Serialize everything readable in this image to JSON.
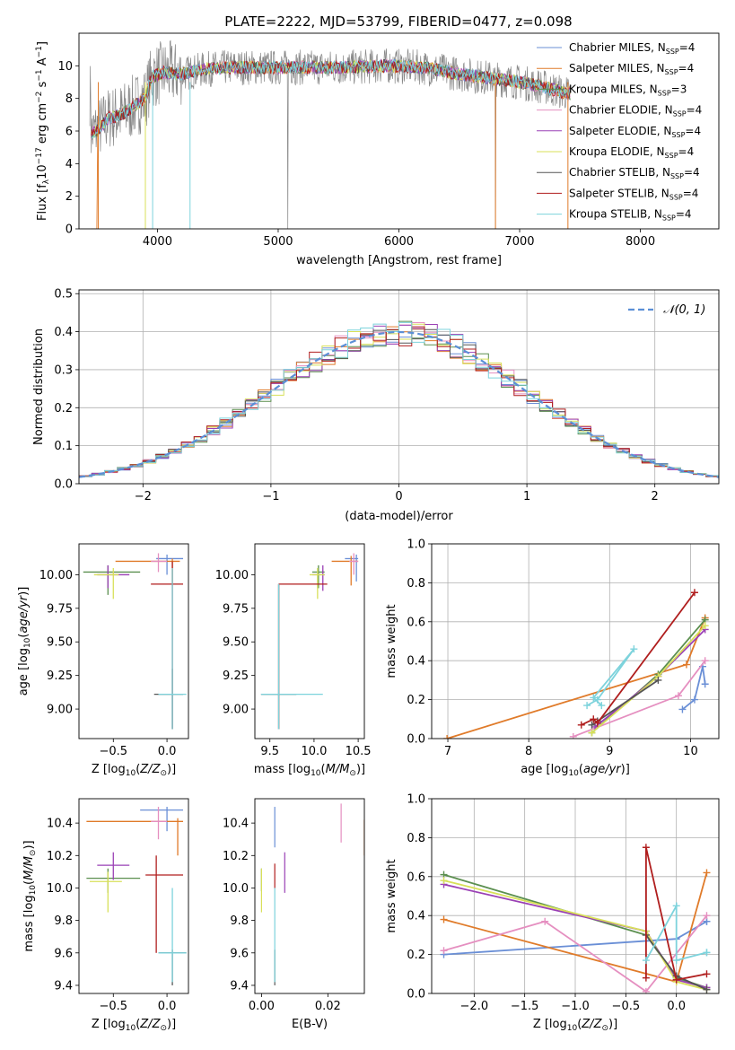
{
  "title": "PLATE=2222, MJD=53799, FIBERID=0477, z=0.098",
  "chart_data": [
    {
      "id": "spectrum",
      "type": "line",
      "xlabel": "wavelength [Angstrom, rest frame]",
      "ylabel": "Flux [f_λ 10^-17 erg cm^-2 s^-1 A^-1]",
      "xlim": [
        3350,
        8650
      ],
      "ylim": [
        0,
        12
      ],
      "xticks": [
        4000,
        5000,
        6000,
        7000,
        8000
      ],
      "yticks": [
        0,
        2,
        4,
        6,
        8,
        10
      ],
      "legend_position": "right",
      "legend": [
        {
          "label": "Chabrier MILES, N_SSP=4",
          "color": "#6a8fd6"
        },
        {
          "label": "Salpeter MILES, N_SSP=4",
          "color": "#e07b2a"
        },
        {
          "label": "Kroupa MILES, N_SSP=3",
          "color": "#5b8f4f"
        },
        {
          "label": "Chabrier ELODIE, N_SSP=4",
          "color": "#e58fc0"
        },
        {
          "label": "Salpeter ELODIE, N_SSP=4",
          "color": "#9a40b5"
        },
        {
          "label": "Kroupa ELODIE, N_SSP=4",
          "color": "#d8e05a"
        },
        {
          "label": "Chabrier STELIB, N_SSP=4",
          "color": "#555555"
        },
        {
          "label": "Salpeter STELIB, N_SSP=4",
          "color": "#b01e1e"
        },
        {
          "label": "Kroupa STELIB, N_SSP=4",
          "color": "#7dd3dc"
        }
      ],
      "data_color": "#888888",
      "model_profile": {
        "x": [
          3450,
          3520,
          3600,
          3700,
          3800,
          3900,
          3950,
          4050,
          4200,
          4400,
          4600,
          4800,
          5000,
          5300,
          5600,
          5900,
          6200,
          6500,
          6800,
          7000,
          7200,
          7400
        ],
        "y": [
          5.8,
          6.2,
          6.8,
          7.0,
          7.5,
          8.0,
          9.3,
          9.6,
          9.5,
          9.8,
          9.9,
          9.9,
          9.9,
          9.9,
          9.9,
          10.0,
          9.9,
          9.5,
          9.2,
          9.0,
          8.7,
          8.3
        ]
      }
    },
    {
      "id": "residuals",
      "type": "line",
      "xlabel": "(data-model)/error",
      "ylabel": "Normed distribution",
      "xlim": [
        -2.5,
        2.5
      ],
      "ylim": [
        0,
        0.51
      ],
      "xticks": [
        -2,
        -1,
        0,
        1,
        2
      ],
      "yticks": [
        0.0,
        0.1,
        0.2,
        0.3,
        0.4,
        0.5
      ],
      "grid": true,
      "legend_position": "top-right",
      "gaussian": {
        "label": "𝒩(0, 1)",
        "color": "#5b8fd6",
        "mean": 0,
        "sigma": 1
      }
    },
    {
      "id": "age-vs-Z",
      "type": "scatter",
      "xlabel": "Z [log10(Z/Z☉)]",
      "ylabel": "age [log10(age/yr)]",
      "xlim": [
        -0.82,
        0.2
      ],
      "ylim": [
        8.78,
        10.23
      ],
      "xticks": [
        -0.5,
        0.0
      ],
      "yticks": [
        9.0,
        9.25,
        9.5,
        9.75,
        10.0
      ],
      "points": [
        {
          "c": "#6a8fd6",
          "x": 0.0,
          "y": 10.12,
          "xe": [
            -0.1,
            0.15
          ],
          "ye": [
            10.0,
            10.15
          ]
        },
        {
          "c": "#e07b2a",
          "x": 0.05,
          "y": 10.1,
          "xe": [
            -0.48,
            0.12
          ],
          "ye": [
            9.92,
            10.12
          ]
        },
        {
          "c": "#5b8f4f",
          "x": -0.55,
          "y": 10.02,
          "xe": [
            -0.78,
            -0.25
          ],
          "ye": [
            9.85,
            10.07
          ]
        },
        {
          "c": "#e58fc0",
          "x": -0.08,
          "y": 10.1,
          "xe": [
            -0.15,
            0.0
          ],
          "ye": [
            10.02,
            10.16
          ]
        },
        {
          "c": "#9a40b5",
          "x": -0.55,
          "y": 10.0,
          "xe": [
            -0.65,
            -0.35
          ],
          "ye": [
            9.9,
            10.07
          ]
        },
        {
          "c": "#d8e05a",
          "x": -0.5,
          "y": 10.0,
          "xe": [
            -0.68,
            -0.45
          ],
          "ye": [
            9.82,
            10.05
          ]
        },
        {
          "c": "#555555",
          "x": 0.05,
          "y": 9.11,
          "xe": [
            -0.12,
            0.15
          ],
          "ye": [
            8.85,
            9.3
          ]
        },
        {
          "c": "#b01e1e",
          "x": 0.05,
          "y": 9.93,
          "xe": [
            -0.15,
            0.15
          ],
          "ye": [
            8.85,
            10.1
          ]
        },
        {
          "c": "#7dd3dc",
          "x": 0.05,
          "y": 9.11,
          "xe": [
            -0.08,
            0.18
          ],
          "ye": [
            8.85,
            10.05
          ]
        }
      ]
    },
    {
      "id": "age-vs-mass",
      "type": "scatter",
      "xlabel": "mass [log10(M/M☉)]",
      "ylabel": "",
      "xlim": [
        9.33,
        10.57
      ],
      "ylim": [
        8.78,
        10.23
      ],
      "xticks": [
        9.5,
        10.0,
        10.5
      ],
      "yticks": [
        9.0,
        9.25,
        9.5,
        9.75,
        10.0
      ],
      "points": [
        {
          "c": "#6a8fd6",
          "x": 10.48,
          "y": 10.12,
          "xe": [
            10.35,
            10.5
          ],
          "ye": [
            9.95,
            10.15
          ]
        },
        {
          "c": "#e07b2a",
          "x": 10.42,
          "y": 10.1,
          "xe": [
            10.2,
            10.5
          ],
          "ye": [
            9.92,
            10.14
          ]
        },
        {
          "c": "#5b8f4f",
          "x": 10.05,
          "y": 10.02,
          "xe": [
            9.98,
            10.12
          ],
          "ye": [
            9.9,
            10.07
          ]
        },
        {
          "c": "#e58fc0",
          "x": 10.45,
          "y": 10.1,
          "xe": [
            10.4,
            10.5
          ],
          "ye": [
            10.0,
            10.16
          ]
        },
        {
          "c": "#9a40b5",
          "x": 10.1,
          "y": 10.0,
          "xe": [
            9.98,
            10.12
          ],
          "ye": [
            9.88,
            10.07
          ]
        },
        {
          "c": "#d8e05a",
          "x": 10.04,
          "y": 10.0,
          "xe": [
            9.95,
            10.12
          ],
          "ye": [
            9.82,
            10.05
          ]
        },
        {
          "c": "#555555",
          "x": 9.6,
          "y": 9.11,
          "xe": [
            9.4,
            9.8
          ],
          "ye": [
            8.85,
            9.93
          ]
        },
        {
          "c": "#b01e1e",
          "x": 9.6,
          "y": 9.93,
          "xe": [
            9.6,
            10.15
          ],
          "ye": [
            8.85,
            9.93
          ]
        },
        {
          "c": "#7dd3dc",
          "x": 9.6,
          "y": 9.11,
          "xe": [
            9.4,
            10.1
          ],
          "ye": [
            8.85,
            9.93
          ]
        }
      ]
    },
    {
      "id": "weight-vs-age",
      "type": "line",
      "xlabel": "age [log10(age/yr)]",
      "ylabel": "mass weight",
      "xlim": [
        6.8,
        10.35
      ],
      "ylim": [
        0,
        1.0
      ],
      "xticks": [
        7,
        8,
        9,
        10
      ],
      "yticks": [
        0.0,
        0.2,
        0.4,
        0.6,
        0.8,
        1.0
      ],
      "grid": true,
      "series": [
        {
          "c": "#6a8fd6",
          "x": [
            9.9,
            10.05,
            10.15,
            10.18
          ],
          "y": [
            0.15,
            0.2,
            0.37,
            0.28
          ]
        },
        {
          "c": "#e07b2a",
          "x": [
            6.99,
            9.95,
            10.18
          ],
          "y": [
            0.0,
            0.38,
            0.62
          ]
        },
        {
          "c": "#5b8f4f",
          "x": [
            8.78,
            9.6,
            10.18
          ],
          "y": [
            0.03,
            0.33,
            0.61
          ]
        },
        {
          "c": "#e58fc0",
          "x": [
            8.55,
            9.85,
            10.18
          ],
          "y": [
            0.01,
            0.22,
            0.4
          ]
        },
        {
          "c": "#9a40b5",
          "x": [
            8.82,
            9.6,
            10.18
          ],
          "y": [
            0.06,
            0.32,
            0.56
          ]
        },
        {
          "c": "#d8e05a",
          "x": [
            8.78,
            9.6,
            10.18
          ],
          "y": [
            0.03,
            0.32,
            0.58
          ]
        },
        {
          "c": "#555555",
          "x": [
            8.78,
            8.85,
            9.6
          ],
          "y": [
            0.07,
            0.09,
            0.3
          ]
        },
        {
          "c": "#b01e1e",
          "x": [
            8.65,
            8.8,
            8.85,
            10.05
          ],
          "y": [
            0.07,
            0.1,
            0.08,
            0.75
          ]
        },
        {
          "c": "#7dd3dc",
          "x": [
            8.72,
            8.85,
            9.3,
            8.8,
            8.9
          ],
          "y": [
            0.17,
            0.2,
            0.46,
            0.21,
            0.17
          ]
        }
      ]
    },
    {
      "id": "mass-vs-Z",
      "type": "scatter",
      "xlabel": "Z [log10(Z/Z☉)]",
      "ylabel": "mass [log10(M/M☉)]",
      "xlim": [
        -0.82,
        0.2
      ],
      "ylim": [
        9.35,
        10.55
      ],
      "xticks": [
        -0.5,
        0.0
      ],
      "yticks": [
        9.4,
        9.6,
        9.8,
        10.0,
        10.2,
        10.4
      ],
      "points": [
        {
          "c": "#6a8fd6",
          "x": 0.0,
          "y": 10.48,
          "xe": [
            -0.25,
            0.15
          ],
          "ye": [
            10.35,
            10.5
          ]
        },
        {
          "c": "#e07b2a",
          "x": 0.1,
          "y": 10.41,
          "xe": [
            -0.75,
            0.15
          ],
          "ye": [
            10.2,
            10.43
          ]
        },
        {
          "c": "#5b8f4f",
          "x": -0.55,
          "y": 10.06,
          "xe": [
            -0.75,
            -0.25
          ],
          "ye": [
            9.97,
            10.12
          ]
        },
        {
          "c": "#e58fc0",
          "x": -0.08,
          "y": 10.41,
          "xe": [
            -0.15,
            0.0
          ],
          "ye": [
            10.3,
            10.5
          ]
        },
        {
          "c": "#9a40b5",
          "x": -0.5,
          "y": 10.14,
          "xe": [
            -0.65,
            -0.35
          ],
          "ye": [
            10.05,
            10.22
          ]
        },
        {
          "c": "#d8e05a",
          "x": -0.55,
          "y": 10.04,
          "xe": [
            -0.72,
            -0.42
          ],
          "ye": [
            9.85,
            10.1
          ]
        },
        {
          "c": "#555555",
          "x": 0.05,
          "y": 9.6,
          "xe": [
            -0.08,
            0.18
          ],
          "ye": [
            9.4,
            9.62
          ]
        },
        {
          "c": "#b01e1e",
          "x": -0.1,
          "y": 10.08,
          "xe": [
            -0.2,
            0.15
          ],
          "ye": [
            9.6,
            10.2
          ]
        },
        {
          "c": "#7dd3dc",
          "x": 0.05,
          "y": 9.6,
          "xe": [
            -0.08,
            0.18
          ],
          "ye": [
            9.42,
            10.0
          ]
        }
      ]
    },
    {
      "id": "mass-vs-ebv",
      "type": "scatter",
      "xlabel": "E(B-V)",
      "ylabel": "",
      "xlim": [
        -0.002,
        0.031
      ],
      "ylim": [
        9.35,
        10.55
      ],
      "xticks": [
        0.0,
        0.02
      ],
      "yticks": [
        9.4,
        9.6,
        9.8,
        10.0,
        10.2,
        10.4
      ],
      "segments": [
        {
          "c": "#6a8fd6",
          "x": 0.004,
          "y0": 10.25,
          "y1": 10.5
        },
        {
          "c": "#e07b2a",
          "x": 0.031,
          "y0": 10.2,
          "y1": 10.42
        },
        {
          "c": "#5b8f4f",
          "x": 0.0,
          "y0": 9.98,
          "y1": 10.12
        },
        {
          "c": "#e58fc0",
          "x": 0.024,
          "y0": 10.28,
          "y1": 10.52
        },
        {
          "c": "#9a40b5",
          "x": 0.007,
          "y0": 9.97,
          "y1": 10.22
        },
        {
          "c": "#d8e05a",
          "x": 0.0,
          "y0": 9.85,
          "y1": 10.12
        },
        {
          "c": "#555555",
          "x": 0.004,
          "y0": 9.4,
          "y1": 9.62
        },
        {
          "c": "#b01e1e",
          "x": 0.004,
          "y0": 10.0,
          "y1": 10.15
        },
        {
          "c": "#7dd3dc",
          "x": 0.004,
          "y0": 9.42,
          "y1": 10.0
        }
      ]
    },
    {
      "id": "weight-vs-Z",
      "type": "line",
      "xlabel": "Z [log10(Z/Z☉)]",
      "ylabel": "mass weight",
      "xlim": [
        -2.42,
        0.42
      ],
      "ylim": [
        0,
        1.0
      ],
      "xticks": [
        -2.0,
        -1.5,
        -1.0,
        -0.5,
        0.0
      ],
      "yticks": [
        0.0,
        0.2,
        0.4,
        0.6,
        0.8,
        1.0
      ],
      "grid": true,
      "series": [
        {
          "c": "#6a8fd6",
          "x": [
            -2.3,
            0.0,
            0.3,
            0.3
          ],
          "y": [
            0.2,
            0.28,
            0.37,
            0.37
          ]
        },
        {
          "c": "#e07b2a",
          "x": [
            -2.3,
            -0.0,
            0.3
          ],
          "y": [
            0.38,
            0.06,
            0.62
          ]
        },
        {
          "c": "#5b8f4f",
          "x": [
            -2.3,
            -0.3,
            0.0,
            0.3
          ],
          "y": [
            0.61,
            0.3,
            0.08,
            0.03
          ]
        },
        {
          "c": "#e58fc0",
          "x": [
            -2.3,
            -1.3,
            -0.3,
            0.3
          ],
          "y": [
            0.22,
            0.37,
            0.01,
            0.4
          ]
        },
        {
          "c": "#9a40b5",
          "x": [
            -2.3,
            -0.3,
            0.0,
            0.3
          ],
          "y": [
            0.56,
            0.32,
            0.07,
            0.03
          ]
        },
        {
          "c": "#d8e05a",
          "x": [
            -2.3,
            -0.3,
            0.0,
            0.3
          ],
          "y": [
            0.58,
            0.32,
            0.06,
            0.02
          ]
        },
        {
          "c": "#555555",
          "x": [
            -0.3,
            0.0,
            0.3
          ],
          "y": [
            0.3,
            0.09,
            0.02
          ]
        },
        {
          "c": "#b01e1e",
          "x": [
            -0.3,
            -0.3,
            0.0,
            0.3
          ],
          "y": [
            0.08,
            0.75,
            0.07,
            0.1
          ]
        },
        {
          "c": "#7dd3dc",
          "x": [
            -0.3,
            0.0,
            0.0,
            0.3,
            0.3
          ],
          "y": [
            0.17,
            0.45,
            0.17,
            0.21,
            0.21
          ]
        }
      ]
    }
  ]
}
